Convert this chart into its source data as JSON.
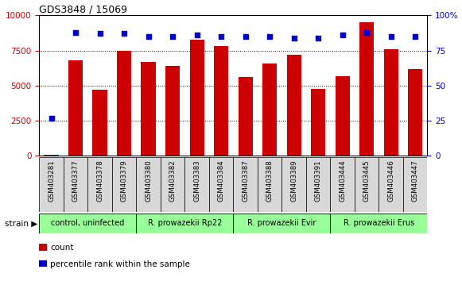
{
  "title": "GDS3848 / 15069",
  "samples": [
    "GSM403281",
    "GSM403377",
    "GSM403378",
    "GSM403379",
    "GSM403380",
    "GSM403382",
    "GSM403383",
    "GSM403384",
    "GSM403387",
    "GSM403388",
    "GSM403389",
    "GSM403391",
    "GSM403444",
    "GSM403445",
    "GSM403446",
    "GSM403447"
  ],
  "counts": [
    100,
    6800,
    4700,
    7500,
    6700,
    6400,
    8300,
    7800,
    5600,
    6600,
    7200,
    4800,
    5700,
    9500,
    7600,
    6200
  ],
  "percentiles": [
    27,
    88,
    87,
    87,
    85,
    85,
    86,
    85,
    85,
    85,
    84,
    84,
    86,
    88,
    85,
    85
  ],
  "bar_color": "#cc0000",
  "dot_color": "#0000cc",
  "background_color": "#ffffff",
  "ylim_left": [
    0,
    10000
  ],
  "ylim_right": [
    0,
    100
  ],
  "yticks_left": [
    0,
    2500,
    5000,
    7500,
    10000
  ],
  "yticks_right": [
    0,
    25,
    50,
    75,
    100
  ],
  "ytick_right_labels": [
    "0",
    "25",
    "50",
    "75",
    "100%"
  ],
  "strain_groups": [
    {
      "label": "control, uninfected",
      "start": 0,
      "end": 3,
      "color": "#99ff99"
    },
    {
      "label": "R. prowazekii Rp22",
      "start": 4,
      "end": 7,
      "color": "#99ff99"
    },
    {
      "label": "R. prowazekii Evir",
      "start": 8,
      "end": 11,
      "color": "#99ff99"
    },
    {
      "label": "R. prowazekii Erus",
      "start": 12,
      "end": 15,
      "color": "#99ff99"
    }
  ],
  "bar_color_left": "#cc0000",
  "tick_color_right": "#0000cc",
  "tick_color_left": "#cc0000",
  "strain_label": "strain",
  "count_label": "count",
  "percentile_label": "percentile rank within the sample",
  "legend_count_color": "#cc0000",
  "legend_dot_color": "#0000cc"
}
